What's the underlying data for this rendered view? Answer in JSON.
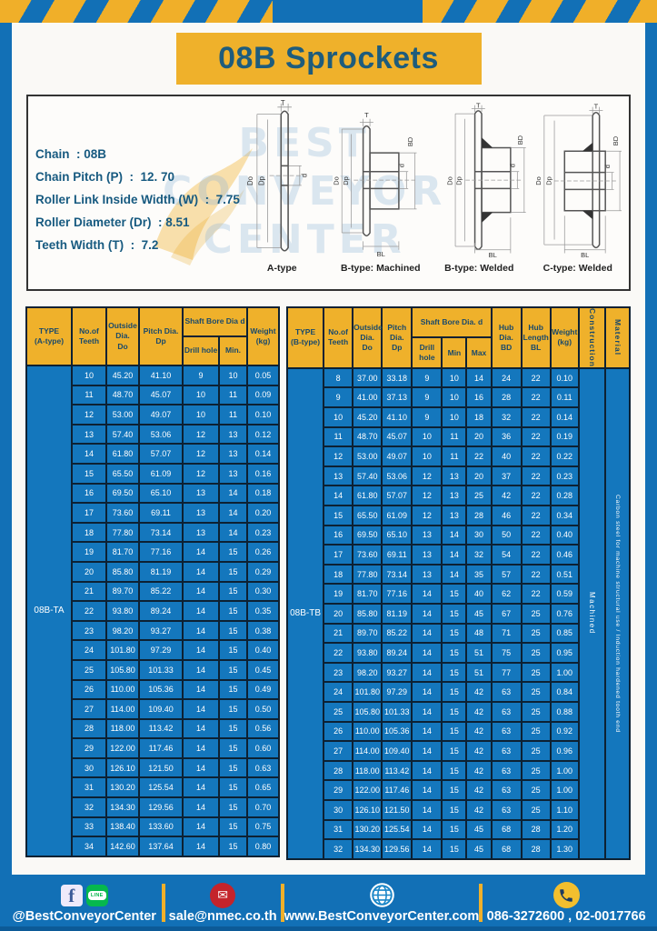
{
  "page": {
    "title": "08B Sprockets"
  },
  "specs": {
    "lines": [
      "Chain  : 08B",
      "Chain Pitch (P)  :  12. 70",
      "Roller Link Inside Width (W)  :  7.75",
      "Roller Diameter (Dr)  : 8.51",
      "Teeth Width (T)  :  7.2"
    ]
  },
  "watermark": {
    "line1": "BEST",
    "line2": "CONVEYOR",
    "line3": "CENTER"
  },
  "diagrams": {
    "dims": {
      "t": "T",
      "do": "Do",
      "dp": "Dp",
      "d": "d",
      "bd": "BD",
      "bl": "BL"
    },
    "items": [
      {
        "label": "A-type"
      },
      {
        "label": "B-type: Machined"
      },
      {
        "label": "B-type: Welded"
      },
      {
        "label": "C-type: Welded"
      }
    ]
  },
  "table_a": {
    "headers": {
      "type": "TYPE\n(A-type)",
      "teeth": "No.of\nTeeth",
      "outside": "Outside\nDia.\nDo",
      "pitch": "Pitch Dia.\nDp",
      "shaft": "Shaft Bore Dia d",
      "drill": "Drill hole",
      "min": "Min.",
      "weight": "Weight\n(kg)"
    },
    "type_label": "08B-TA",
    "rows": [
      [
        "10",
        "45.20",
        "41.10",
        "9",
        "10",
        "0.05"
      ],
      [
        "11",
        "48.70",
        "45.07",
        "10",
        "11",
        "0.09"
      ],
      [
        "12",
        "53.00",
        "49.07",
        "10",
        "11",
        "0.10"
      ],
      [
        "13",
        "57.40",
        "53.06",
        "12",
        "13",
        "0.12"
      ],
      [
        "14",
        "61.80",
        "57.07",
        "12",
        "13",
        "0.14"
      ],
      [
        "15",
        "65.50",
        "61.09",
        "12",
        "13",
        "0.16"
      ],
      [
        "16",
        "69.50",
        "65.10",
        "13",
        "14",
        "0.18"
      ],
      [
        "17",
        "73.60",
        "69.11",
        "13",
        "14",
        "0.20"
      ],
      [
        "18",
        "77.80",
        "73.14",
        "13",
        "14",
        "0.23"
      ],
      [
        "19",
        "81.70",
        "77.16",
        "14",
        "15",
        "0.26"
      ],
      [
        "20",
        "85.80",
        "81.19",
        "14",
        "15",
        "0.29"
      ],
      [
        "21",
        "89.70",
        "85.22",
        "14",
        "15",
        "0.30"
      ],
      [
        "22",
        "93.80",
        "89.24",
        "14",
        "15",
        "0.35"
      ],
      [
        "23",
        "98.20",
        "93.27",
        "14",
        "15",
        "0.38"
      ],
      [
        "24",
        "101.80",
        "97.29",
        "14",
        "15",
        "0.40"
      ],
      [
        "25",
        "105.80",
        "101.33",
        "14",
        "15",
        "0.45"
      ],
      [
        "26",
        "110.00",
        "105.36",
        "14",
        "15",
        "0.49"
      ],
      [
        "27",
        "114.00",
        "109.40",
        "14",
        "15",
        "0.50"
      ],
      [
        "28",
        "118.00",
        "113.42",
        "14",
        "15",
        "0.56"
      ],
      [
        "29",
        "122.00",
        "117.46",
        "14",
        "15",
        "0.60"
      ],
      [
        "30",
        "126.10",
        "121.50",
        "14",
        "15",
        "0.63"
      ],
      [
        "31",
        "130.20",
        "125.54",
        "14",
        "15",
        "0.65"
      ],
      [
        "32",
        "134.30",
        "129.56",
        "14",
        "15",
        "0.70"
      ],
      [
        "33",
        "138.40",
        "133.60",
        "14",
        "15",
        "0.75"
      ],
      [
        "34",
        "142.60",
        "137.64",
        "14",
        "15",
        "0.80"
      ]
    ]
  },
  "table_b": {
    "headers": {
      "type": "TYPE\n(B-type)",
      "teeth": "No.of\nTeeth",
      "outside": "Outside\nDia.\nDo",
      "pitch": "Pitch\nDia.\nDp",
      "shaft": "Shaft Bore Dia.  d",
      "drill": "Drill hole",
      "min": "Min",
      "max": "Max",
      "hub_dia": "Hub\nDia.\nBD",
      "hub_len": "Hub\nLength\nBL",
      "weight": "Weight\n(kg)",
      "construction": "Construction",
      "material": "Material"
    },
    "type_label": "08B-TB",
    "construction_value": "Machined",
    "material_value": "Carbon steel for machine structural use / Induction hardened tooth end",
    "rows": [
      [
        "8",
        "37.00",
        "33.18",
        "9",
        "10",
        "14",
        "24",
        "22",
        "0.10"
      ],
      [
        "9",
        "41.00",
        "37.13",
        "9",
        "10",
        "16",
        "28",
        "22",
        "0.11"
      ],
      [
        "10",
        "45.20",
        "41.10",
        "9",
        "10",
        "18",
        "32",
        "22",
        "0.14"
      ],
      [
        "11",
        "48.70",
        "45.07",
        "10",
        "11",
        "20",
        "36",
        "22",
        "0.19"
      ],
      [
        "12",
        "53.00",
        "49.07",
        "10",
        "11",
        "22",
        "40",
        "22",
        "0.22"
      ],
      [
        "13",
        "57.40",
        "53.06",
        "12",
        "13",
        "20",
        "37",
        "22",
        "0.23"
      ],
      [
        "14",
        "61.80",
        "57.07",
        "12",
        "13",
        "25",
        "42",
        "22",
        "0.28"
      ],
      [
        "15",
        "65.50",
        "61.09",
        "12",
        "13",
        "28",
        "46",
        "22",
        "0.34"
      ],
      [
        "16",
        "69.50",
        "65.10",
        "13",
        "14",
        "30",
        "50",
        "22",
        "0.40"
      ],
      [
        "17",
        "73.60",
        "69.11",
        "13",
        "14",
        "32",
        "54",
        "22",
        "0.46"
      ],
      [
        "18",
        "77.80",
        "73.14",
        "13",
        "14",
        "35",
        "57",
        "22",
        "0.51"
      ],
      [
        "19",
        "81.70",
        "77.16",
        "14",
        "15",
        "40",
        "62",
        "22",
        "0.59"
      ],
      [
        "20",
        "85.80",
        "81.19",
        "14",
        "15",
        "45",
        "67",
        "25",
        "0.76"
      ],
      [
        "21",
        "89.70",
        "85.22",
        "14",
        "15",
        "48",
        "71",
        "25",
        "0.85"
      ],
      [
        "22",
        "93.80",
        "89.24",
        "14",
        "15",
        "51",
        "75",
        "25",
        "0.95"
      ],
      [
        "23",
        "98.20",
        "93.27",
        "14",
        "15",
        "51",
        "77",
        "25",
        "1.00"
      ],
      [
        "24",
        "101.80",
        "97.29",
        "14",
        "15",
        "42",
        "63",
        "25",
        "0.84"
      ],
      [
        "25",
        "105.80",
        "101.33",
        "14",
        "15",
        "42",
        "63",
        "25",
        "0.88"
      ],
      [
        "26",
        "110.00",
        "105.36",
        "14",
        "15",
        "42",
        "63",
        "25",
        "0.92"
      ],
      [
        "27",
        "114.00",
        "109.40",
        "14",
        "15",
        "42",
        "63",
        "25",
        "0.96"
      ],
      [
        "28",
        "118.00",
        "113.42",
        "14",
        "15",
        "42",
        "63",
        "25",
        "1.00"
      ],
      [
        "29",
        "122.00",
        "117.46",
        "14",
        "15",
        "42",
        "63",
        "25",
        "1.00"
      ],
      [
        "30",
        "126.10",
        "121.50",
        "14",
        "15",
        "42",
        "63",
        "25",
        "1.10"
      ],
      [
        "31",
        "130.20",
        "125.54",
        "14",
        "15",
        "45",
        "68",
        "28",
        "1.20"
      ],
      [
        "32",
        "134.30",
        "129.56",
        "14",
        "15",
        "45",
        "68",
        "28",
        "1.30"
      ]
    ]
  },
  "footer": {
    "handle": "@BestConveyorCenter",
    "email": "sale@nmec.co.th",
    "website": "www.BestConveyorCenter.com",
    "phone": "086-3272600 , 02-0017766",
    "icons": {
      "facebook_glyph": "f",
      "line_glyph": "LINE",
      "email_glyph": "✉"
    }
  }
}
